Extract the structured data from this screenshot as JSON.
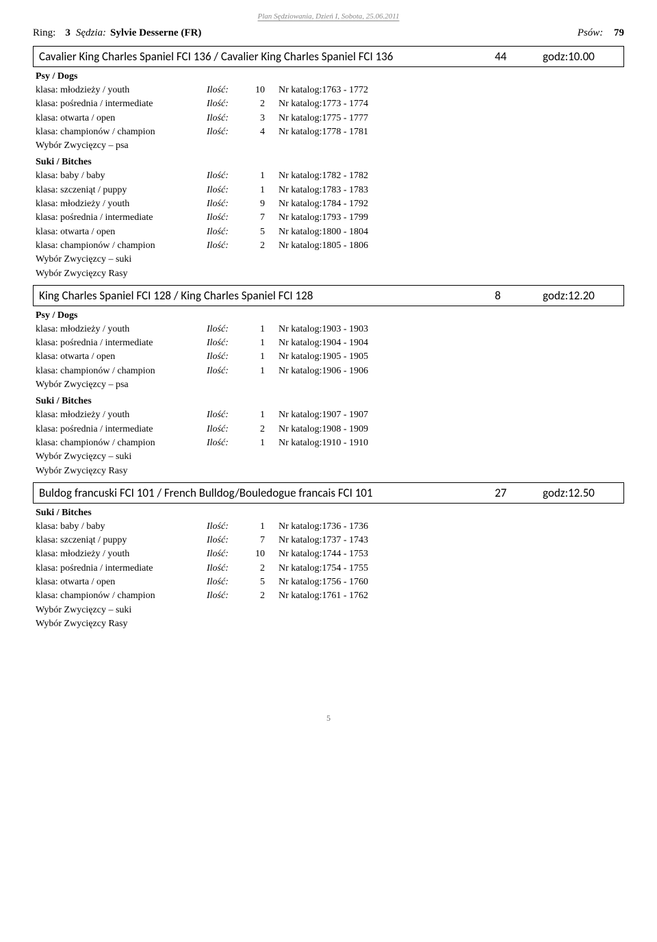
{
  "header": "Plan Sędziowania, Dzień I, Sobota, 25.06.2011",
  "ringLabel": "Ring:",
  "ringNumber": "3",
  "sedziaLabel": "Sędzia:",
  "judgeName": "Sylvie Desserne (FR)",
  "psowLabel": "Psów:",
  "psowCount": "79",
  "iloscLabel": "Ilość:",
  "katalogPrefix": "Nr katalog:",
  "labels": {
    "psy": "Psy / Dogs",
    "suki": "Suki / Bitches",
    "wypsa": "Wybór Zwycięzcy – psa",
    "wysuki": "Wybór Zwycięzcy – suki",
    "wyrasy": "Wybór Zwycięzcy Rasy"
  },
  "pageNumber": "5",
  "breeds": [
    {
      "title": "Cavalier King Charles Spaniel FCI 136 / Cavalier King Charles Spaniel FCI 136",
      "count": "44",
      "time": "godz:10.00",
      "groups": [
        {
          "countType": "full",
          "before": "psy",
          "rows": [
            {
              "cls": "klasa: młodzieży / youth",
              "n": "10",
              "from": "1763",
              "to": "1772"
            },
            {
              "cls": "klasa: pośrednia / intermediate",
              "n": "2",
              "from": "1773",
              "to": "1774"
            },
            {
              "cls": "klasa: otwarta / open",
              "n": "3",
              "from": "1775",
              "to": "1777"
            },
            {
              "cls": "klasa: championów / champion",
              "n": "4",
              "from": "1778",
              "to": "1781"
            }
          ],
          "after": [
            "wypsa"
          ]
        },
        {
          "countType": "full",
          "before": "suki",
          "rows": [
            {
              "cls": "klasa: baby / baby",
              "n": "1",
              "from": "1782",
              "to": "1782"
            },
            {
              "cls": "klasa: szczeniąt / puppy",
              "n": "1",
              "from": "1783",
              "to": "1783"
            },
            {
              "cls": "klasa: młodzieży / youth",
              "n": "9",
              "from": "1784",
              "to": "1792"
            },
            {
              "cls": "klasa: pośrednia / intermediate",
              "n": "7",
              "from": "1793",
              "to": "1799"
            },
            {
              "cls": "klasa: otwarta / open",
              "n": "5",
              "from": "1800",
              "to": "1804"
            },
            {
              "cls": "klasa: championów / champion",
              "n": "2",
              "from": "1805",
              "to": "1806"
            }
          ],
          "after": [
            "wysuki",
            "wyrasy"
          ]
        }
      ]
    },
    {
      "title": "King Charles Spaniel FCI 128 / King Charles Spaniel FCI 128",
      "count": "8",
      "time": "godz:12.20",
      "groups": [
        {
          "countType": "full",
          "before": "psy",
          "rows": [
            {
              "cls": "klasa: młodzieży / youth",
              "n": "1",
              "from": "1903",
              "to": "1903"
            },
            {
              "cls": "klasa: pośrednia / intermediate",
              "n": "1",
              "from": "1904",
              "to": "1904"
            },
            {
              "cls": "klasa: otwarta / open",
              "n": "1",
              "from": "1905",
              "to": "1905"
            },
            {
              "cls": "klasa: championów / champion",
              "n": "1",
              "from": "1906",
              "to": "1906"
            }
          ],
          "after": [
            "wypsa"
          ]
        },
        {
          "countType": "full",
          "before": "suki",
          "rows": [
            {
              "cls": "klasa: młodzieży / youth",
              "n": "1",
              "from": "1907",
              "to": "1907"
            },
            {
              "cls": "klasa: pośrednia / intermediate",
              "n": "2",
              "from": "1908",
              "to": "1909"
            },
            {
              "cls": "klasa: championów / champion",
              "n": "1",
              "from": "1910",
              "to": "1910"
            }
          ],
          "after": [
            "wysuki",
            "wyrasy"
          ]
        }
      ]
    },
    {
      "title": "Buldog francuski FCI 101 / French Bulldog/Bouledogue francais FCI 101",
      "count": "27",
      "time": "godz:12.50",
      "groups": [
        {
          "countType": "full",
          "before": "suki",
          "rows": [
            {
              "cls": "klasa: baby / baby",
              "n": "1",
              "from": "1736",
              "to": "1736"
            },
            {
              "cls": "klasa: szczeniąt / puppy",
              "n": "7",
              "from": "1737",
              "to": "1743"
            },
            {
              "cls": "klasa: młodzieży / youth",
              "n": "10",
              "from": "1744",
              "to": "1753"
            },
            {
              "cls": "klasa: pośrednia / intermediate",
              "n": "2",
              "from": "1754",
              "to": "1755"
            },
            {
              "cls": "klasa: otwarta / open",
              "n": "5",
              "from": "1756",
              "to": "1760"
            },
            {
              "cls": "klasa: championów / champion",
              "n": "2",
              "from": "1761",
              "to": "1762"
            }
          ],
          "after": [
            "wysuki",
            "wyrasy"
          ]
        }
      ]
    }
  ]
}
